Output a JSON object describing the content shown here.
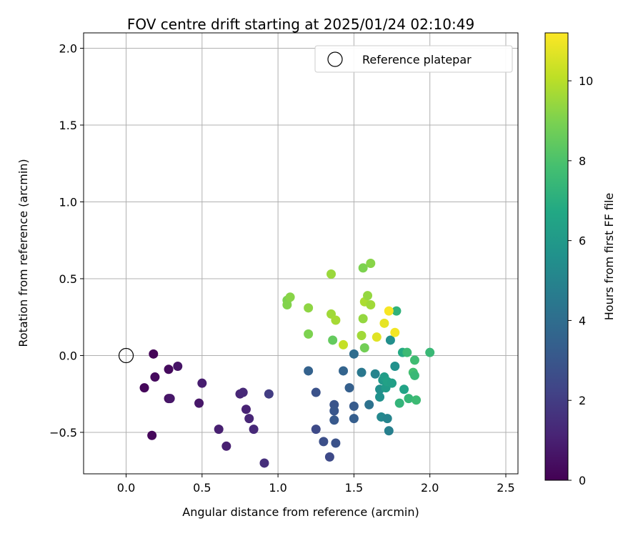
{
  "chart_data": {
    "type": "scatter",
    "title": "FOV centre drift starting at 2025/01/24 02:10:49",
    "xlabel": "Angular distance from reference (arcmin)",
    "ylabel": "Rotation from reference (arcmin)",
    "xlim": [
      -0.28,
      2.58
    ],
    "ylim": [
      -0.77,
      2.1
    ],
    "xticks": [
      0.0,
      0.5,
      1.0,
      1.5,
      2.0,
      2.5
    ],
    "xtick_labels": [
      "0.0",
      "0.5",
      "1.0",
      "1.5",
      "2.0",
      "2.5"
    ],
    "yticks": [
      -0.5,
      0.0,
      0.5,
      1.0,
      1.5,
      2.0
    ],
    "ytick_labels": [
      "−0.5",
      "0.0",
      "0.5",
      "1.0",
      "1.5",
      "2.0"
    ],
    "grid": true,
    "legend": {
      "position": "top-right",
      "label": "Reference platepar"
    },
    "reference_point": {
      "x": 0.0,
      "y": 0.0
    },
    "colorbar": {
      "label": "Hours from first FF file",
      "colormap": "viridis",
      "range": [
        0,
        11.2
      ],
      "ticks": [
        0,
        2,
        4,
        6,
        8,
        10
      ],
      "tick_labels": [
        "0",
        "2",
        "4",
        "6",
        "8",
        "10"
      ]
    },
    "points": [
      {
        "x": 0.18,
        "y": 0.01,
        "h": 0.1
      },
      {
        "x": 0.12,
        "y": -0.21,
        "h": 0.2
      },
      {
        "x": 0.19,
        "y": -0.14,
        "h": 0.3
      },
      {
        "x": 0.17,
        "y": -0.52,
        "h": 0.2
      },
      {
        "x": 0.28,
        "y": -0.09,
        "h": 0.3
      },
      {
        "x": 0.34,
        "y": -0.07,
        "h": 0.6
      },
      {
        "x": 0.28,
        "y": -0.28,
        "h": 0.5
      },
      {
        "x": 0.29,
        "y": -0.28,
        "h": 0.7
      },
      {
        "x": 0.48,
        "y": -0.31,
        "h": 0.7
      },
      {
        "x": 0.5,
        "y": -0.18,
        "h": 0.9
      },
      {
        "x": 0.61,
        "y": -0.48,
        "h": 1.0
      },
      {
        "x": 0.66,
        "y": -0.59,
        "h": 1.0
      },
      {
        "x": 0.75,
        "y": -0.25,
        "h": 1.2
      },
      {
        "x": 0.77,
        "y": -0.24,
        "h": 1.3
      },
      {
        "x": 0.79,
        "y": -0.35,
        "h": 1.1
      },
      {
        "x": 0.81,
        "y": -0.41,
        "h": 1.2
      },
      {
        "x": 0.84,
        "y": -0.48,
        "h": 1.3
      },
      {
        "x": 0.91,
        "y": -0.7,
        "h": 1.5
      },
      {
        "x": 0.94,
        "y": -0.25,
        "h": 2.0
      },
      {
        "x": 1.2,
        "y": -0.1,
        "h": 3.5
      },
      {
        "x": 1.25,
        "y": -0.24,
        "h": 2.8
      },
      {
        "x": 1.25,
        "y": -0.48,
        "h": 2.5
      },
      {
        "x": 1.3,
        "y": -0.56,
        "h": 2.7
      },
      {
        "x": 1.34,
        "y": -0.66,
        "h": 2.5
      },
      {
        "x": 1.37,
        "y": -0.32,
        "h": 2.9
      },
      {
        "x": 1.37,
        "y": -0.36,
        "h": 3.0
      },
      {
        "x": 1.37,
        "y": -0.42,
        "h": 3.1
      },
      {
        "x": 1.38,
        "y": -0.57,
        "h": 2.8
      },
      {
        "x": 1.43,
        "y": -0.1,
        "h": 3.6
      },
      {
        "x": 1.47,
        "y": -0.21,
        "h": 3.4
      },
      {
        "x": 1.5,
        "y": 0.01,
        "h": 4.0
      },
      {
        "x": 1.5,
        "y": -0.33,
        "h": 3.2
      },
      {
        "x": 1.5,
        "y": -0.41,
        "h": 3.3
      },
      {
        "x": 1.55,
        "y": -0.11,
        "h": 4.5
      },
      {
        "x": 1.6,
        "y": -0.32,
        "h": 4.2
      },
      {
        "x": 1.64,
        "y": -0.12,
        "h": 5.0
      },
      {
        "x": 1.67,
        "y": -0.22,
        "h": 5.5
      },
      {
        "x": 1.67,
        "y": -0.27,
        "h": 5.6
      },
      {
        "x": 1.68,
        "y": -0.4,
        "h": 5.2
      },
      {
        "x": 1.69,
        "y": -0.16,
        "h": 6.0
      },
      {
        "x": 1.7,
        "y": -0.14,
        "h": 6.2
      },
      {
        "x": 1.71,
        "y": -0.21,
        "h": 6.1
      },
      {
        "x": 1.72,
        "y": -0.41,
        "h": 5.0
      },
      {
        "x": 1.72,
        "y": -0.17,
        "h": 6.4
      },
      {
        "x": 1.73,
        "y": -0.49,
        "h": 4.8
      },
      {
        "x": 1.74,
        "y": 0.1,
        "h": 5.5
      },
      {
        "x": 1.75,
        "y": -0.18,
        "h": 6.3
      },
      {
        "x": 1.77,
        "y": -0.07,
        "h": 5.6
      },
      {
        "x": 1.78,
        "y": 0.29,
        "h": 7.2
      },
      {
        "x": 1.8,
        "y": -0.31,
        "h": 7.3
      },
      {
        "x": 1.82,
        "y": 0.02,
        "h": 6.8
      },
      {
        "x": 1.83,
        "y": -0.22,
        "h": 6.5
      },
      {
        "x": 1.85,
        "y": 0.02,
        "h": 7.6
      },
      {
        "x": 1.86,
        "y": -0.28,
        "h": 7.4
      },
      {
        "x": 1.89,
        "y": -0.11,
        "h": 7.8
      },
      {
        "x": 1.9,
        "y": -0.13,
        "h": 7.5
      },
      {
        "x": 1.9,
        "y": -0.03,
        "h": 7.7
      },
      {
        "x": 1.91,
        "y": -0.29,
        "h": 7.6
      },
      {
        "x": 2.0,
        "y": 0.02,
        "h": 7.5
      },
      {
        "x": 1.06,
        "y": 0.36,
        "h": 9.0
      },
      {
        "x": 1.06,
        "y": 0.33,
        "h": 9.1
      },
      {
        "x": 1.08,
        "y": 0.38,
        "h": 9.2
      },
      {
        "x": 1.2,
        "y": 0.31,
        "h": 9.3
      },
      {
        "x": 1.2,
        "y": 0.14,
        "h": 9.0
      },
      {
        "x": 1.35,
        "y": 0.53,
        "h": 9.5
      },
      {
        "x": 1.35,
        "y": 0.27,
        "h": 9.6
      },
      {
        "x": 1.36,
        "y": 0.1,
        "h": 8.5
      },
      {
        "x": 1.38,
        "y": 0.23,
        "h": 9.7
      },
      {
        "x": 1.43,
        "y": 0.07,
        "h": 10.2
      },
      {
        "x": 1.55,
        "y": 0.13,
        "h": 9.6
      },
      {
        "x": 1.56,
        "y": 0.57,
        "h": 9.0
      },
      {
        "x": 1.56,
        "y": 0.24,
        "h": 9.4
      },
      {
        "x": 1.57,
        "y": 0.35,
        "h": 9.8
      },
      {
        "x": 1.57,
        "y": 0.05,
        "h": 8.8
      },
      {
        "x": 1.59,
        "y": 0.39,
        "h": 9.4
      },
      {
        "x": 1.61,
        "y": 0.6,
        "h": 9.2
      },
      {
        "x": 1.61,
        "y": 0.33,
        "h": 9.6
      },
      {
        "x": 1.65,
        "y": 0.12,
        "h": 10.7
      },
      {
        "x": 1.7,
        "y": 0.21,
        "h": 10.8
      },
      {
        "x": 1.73,
        "y": 0.29,
        "h": 11.1
      },
      {
        "x": 1.77,
        "y": 0.15,
        "h": 11.0
      }
    ]
  }
}
